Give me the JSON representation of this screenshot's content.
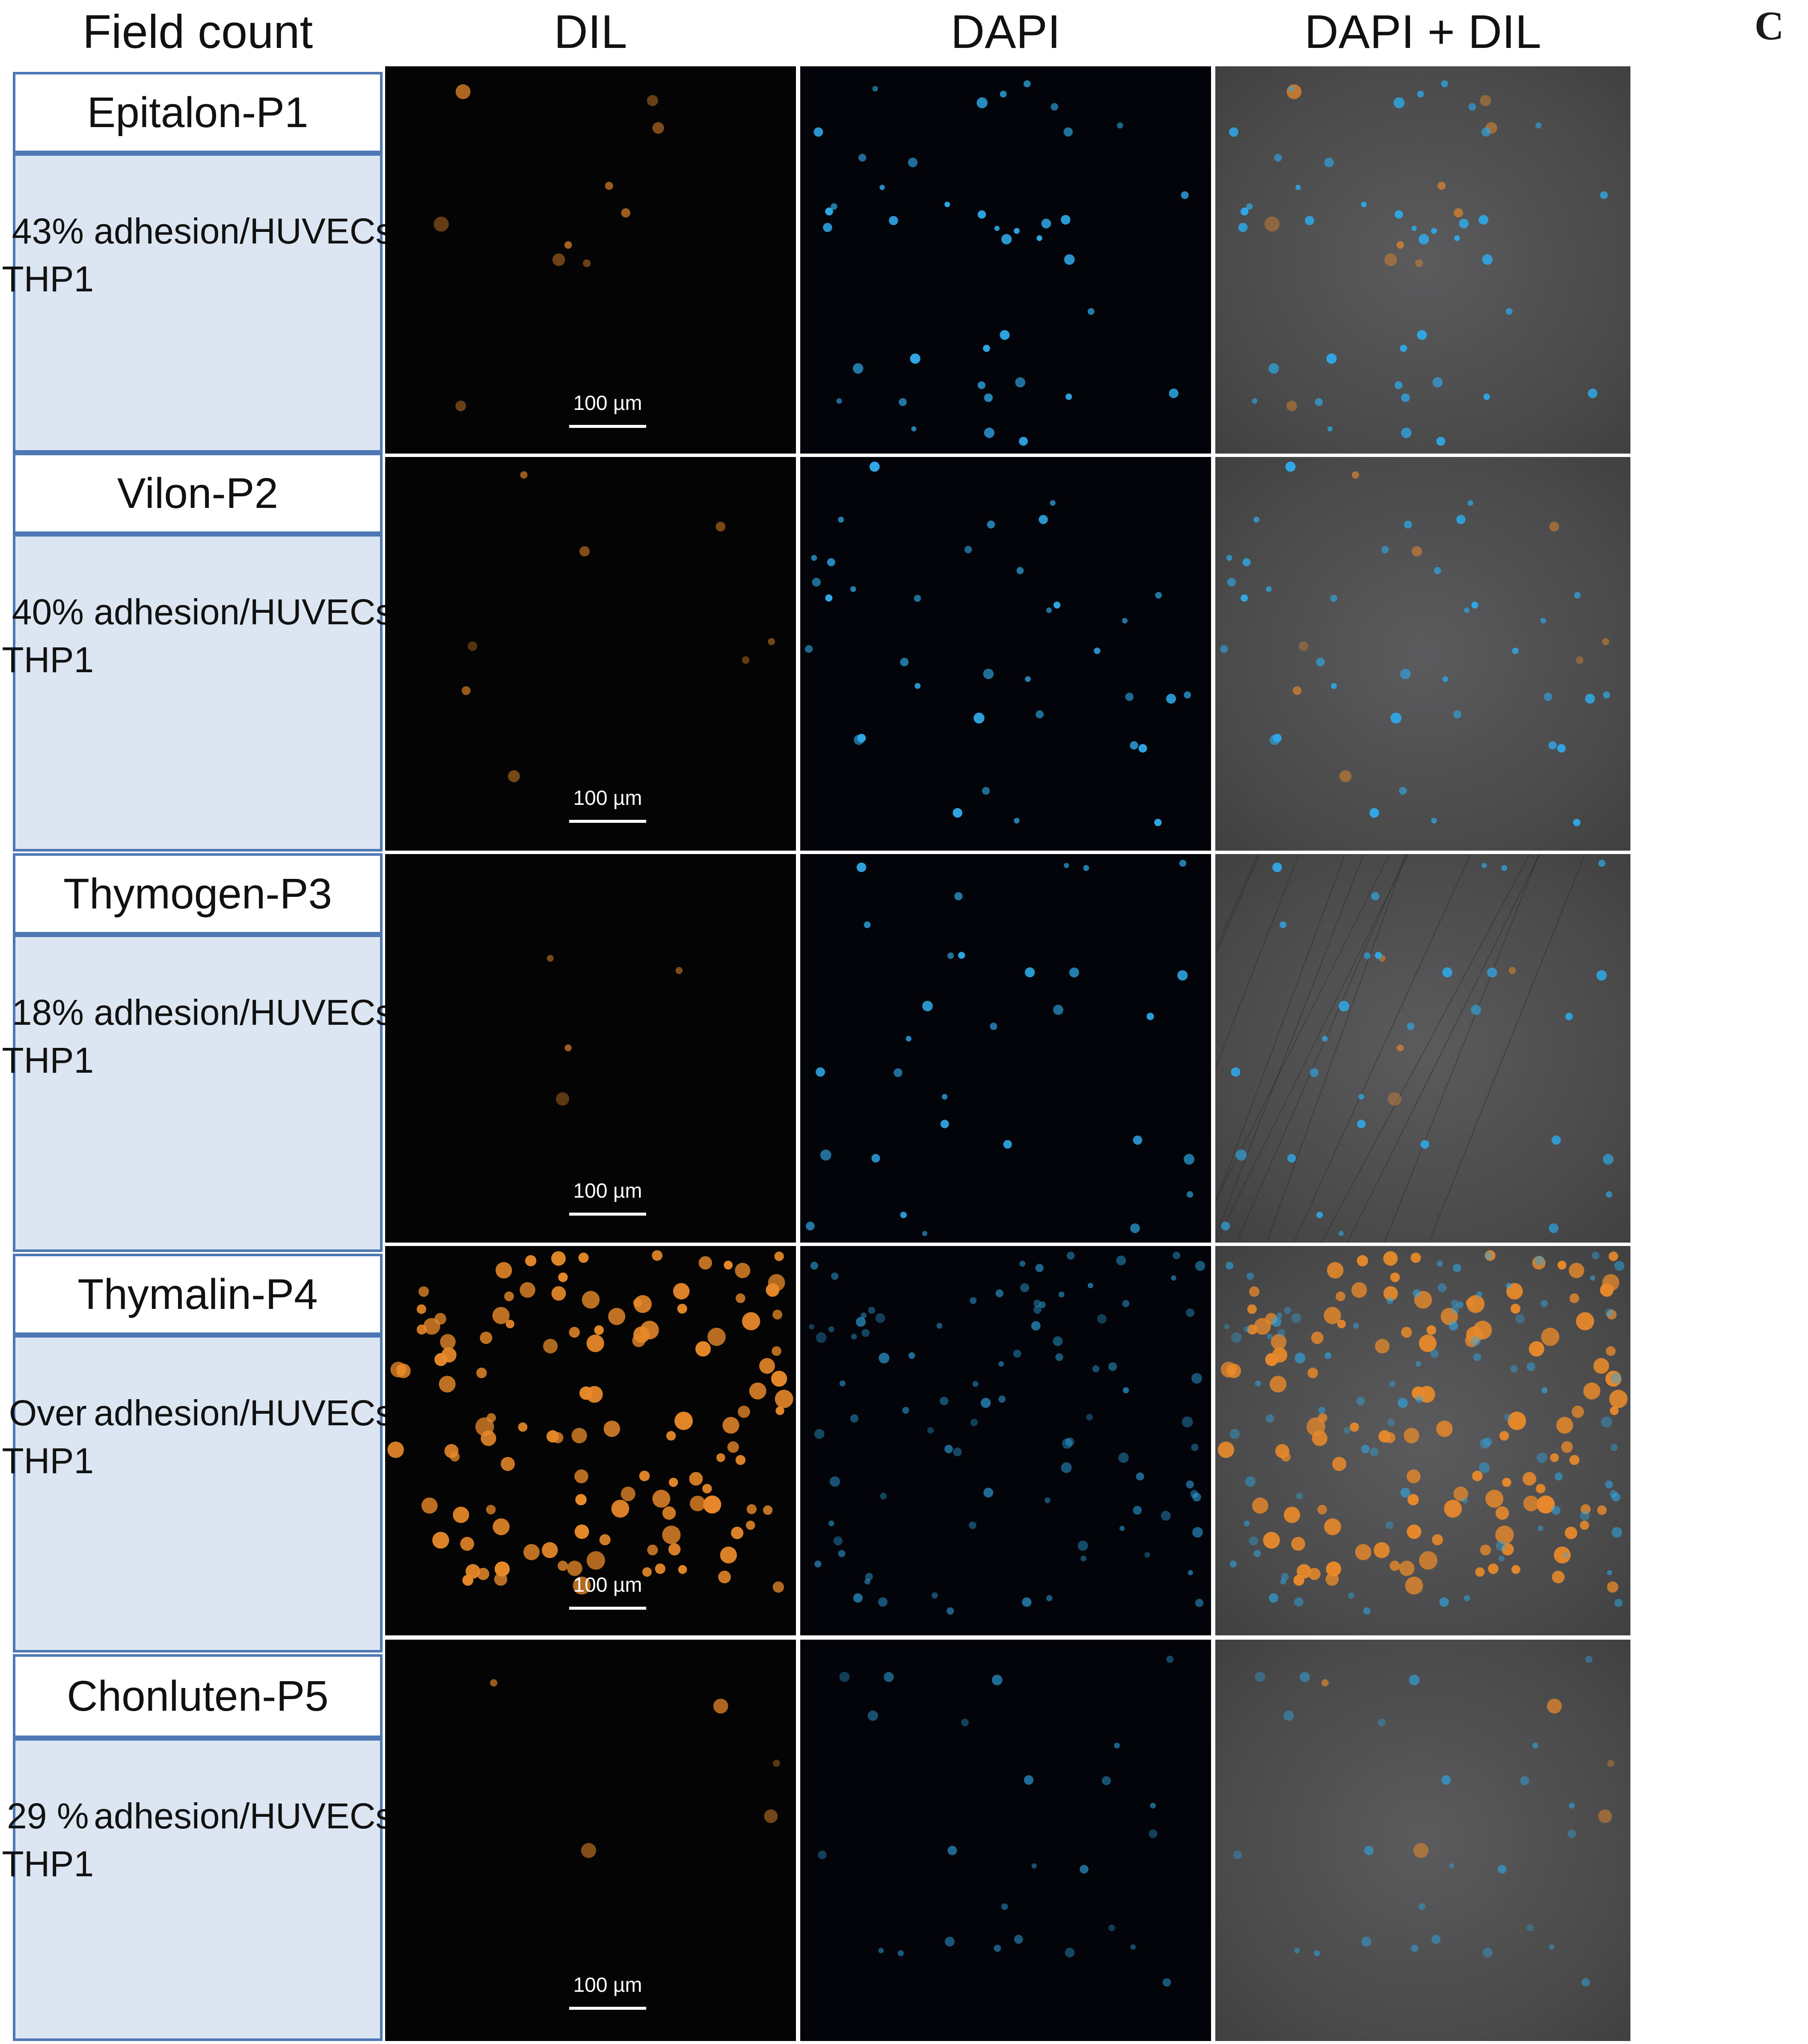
{
  "headers": {
    "field_count": "Field count",
    "dil": "DIL",
    "dapi": "DAPI",
    "merge": "DAPI + DIL"
  },
  "panel_letter": "C",
  "scale_bar_label": "100 µm",
  "colors": {
    "dil_orange": "#e8892a",
    "dapi_blue": "#2fa8e6",
    "label_fill": "#dce6f2",
    "label_border": "#4e78b4"
  },
  "rows": [
    {
      "name": "Epitalon-P1",
      "count_line1": "43% THP1",
      "count_line2": "adhesion/HUVECs"
    },
    {
      "name": "Vilon-P2",
      "count_line1": "40% THP1",
      "count_line2": "adhesion/HUVECs"
    },
    {
      "name": "Thymogen-P3",
      "count_line1": "18% THP1",
      "count_line2": "adhesion/HUVECs"
    },
    {
      "name": "Thymalin-P4",
      "count_line1": "Over THP1",
      "count_line2": "adhesion/HUVECs"
    },
    {
      "name": "Chonluten-P5",
      "count_line1": "29 % THP1",
      "count_line2": "adhesion/HUVECs"
    }
  ]
}
